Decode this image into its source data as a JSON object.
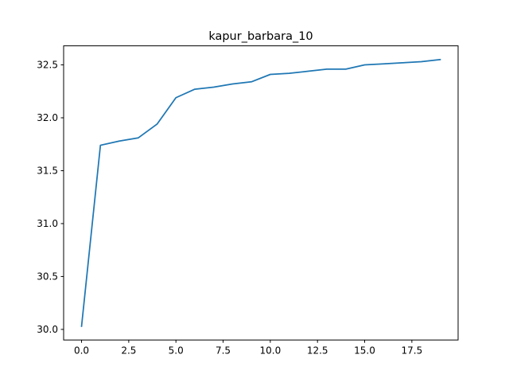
{
  "chart_data": {
    "type": "line",
    "title": "kapur_barbara_10",
    "xlabel": "",
    "ylabel": "",
    "xlim": [
      -0.95,
      19.95
    ],
    "ylim": [
      29.9,
      32.68
    ],
    "grid": false,
    "x_ticks": [
      0.0,
      2.5,
      5.0,
      7.5,
      10.0,
      12.5,
      15.0,
      17.5
    ],
    "x_tick_labels": [
      "0.0",
      "2.5",
      "5.0",
      "7.5",
      "10.0",
      "12.5",
      "15.0",
      "17.5"
    ],
    "y_ticks": [
      30.0,
      30.5,
      31.0,
      31.5,
      32.0,
      32.5
    ],
    "y_tick_labels": [
      "30.0",
      "30.5",
      "31.0",
      "31.5",
      "32.0",
      "32.5"
    ],
    "series": [
      {
        "color": "#1f77b4",
        "x": [
          0,
          1,
          2,
          3,
          4,
          5,
          6,
          7,
          8,
          9,
          10,
          11,
          12,
          13,
          14,
          15,
          16,
          17,
          18,
          19
        ],
        "y": [
          30.03,
          31.74,
          31.78,
          31.81,
          31.94,
          32.19,
          32.27,
          32.29,
          32.32,
          32.34,
          32.41,
          32.42,
          32.44,
          32.46,
          32.46,
          32.5,
          32.51,
          32.52,
          32.53,
          32.55
        ]
      }
    ]
  }
}
